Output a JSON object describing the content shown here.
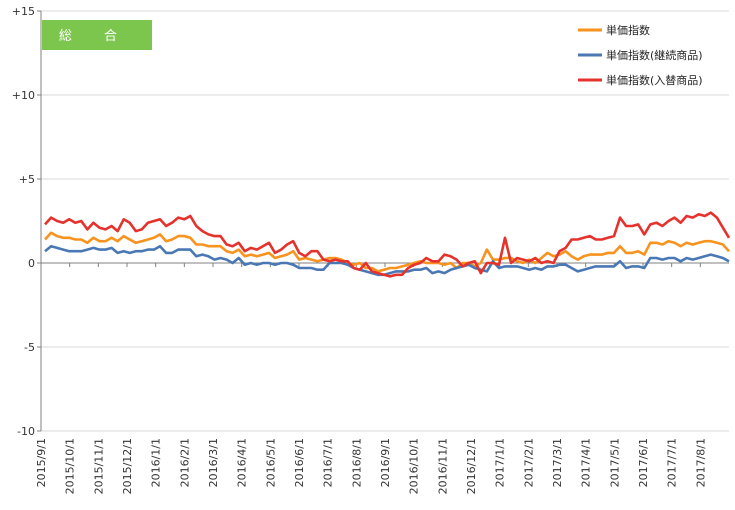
{
  "chart_data": {
    "type": "line",
    "title": "総 合",
    "badge_color": "#7cc64e",
    "ylim": [
      -10,
      15
    ],
    "yticks": [
      -10,
      -5,
      0,
      5,
      10,
      15
    ],
    "ytick_labels": [
      "-10",
      "-5",
      "0",
      "+5",
      "+10",
      "+15"
    ],
    "grid": true,
    "legend_position": "top-right",
    "xlabels": [
      "2015/9/1",
      "2015/10/1",
      "2015/11/1",
      "2015/12/1",
      "2016/1/1",
      "2016/2/1",
      "2016/3/1",
      "2016/4/1",
      "2016/5/1",
      "2016/6/1",
      "2016/7/1",
      "2016/8/1",
      "2016/9/1",
      "2016/10/1",
      "2016/11/1",
      "2016/12/1",
      "2017/1/1",
      "2017/2/1",
      "2017/3/1",
      "2017/4/1",
      "2017/5/1",
      "2017/6/1",
      "2017/7/1",
      "2017/8/1"
    ],
    "series": [
      {
        "name": "単価指数",
        "color": "#f7931e",
        "values": [
          1.4,
          1.8,
          1.6,
          1.5,
          1.5,
          1.4,
          1.4,
          1.2,
          1.5,
          1.3,
          1.3,
          1.5,
          1.3,
          1.6,
          1.4,
          1.2,
          1.3,
          1.4,
          1.5,
          1.7,
          1.3,
          1.4,
          1.6,
          1.6,
          1.5,
          1.1,
          1.1,
          1.0,
          1.0,
          1.0,
          0.7,
          0.6,
          0.8,
          0.4,
          0.5,
          0.4,
          0.5,
          0.6,
          0.3,
          0.4,
          0.5,
          0.7,
          0.2,
          0.3,
          0.2,
          0.1,
          0.2,
          0.3,
          0.3,
          0.2,
          0.0,
          -0.1,
          0.0,
          -0.3,
          -0.3,
          -0.5,
          -0.4,
          -0.3,
          -0.3,
          -0.2,
          -0.1,
          0.0,
          0.1,
          0.0,
          0.0,
          0.0,
          -0.1,
          0.0,
          -0.3,
          0.0,
          0.0,
          -0.2,
          0.0,
          0.8,
          0.2,
          0.2,
          0.3,
          0.3,
          0.1,
          0.0,
          0.2,
          0.0,
          0.3,
          0.6,
          0.4,
          0.5,
          0.7,
          0.4,
          0.2,
          0.4,
          0.5,
          0.5,
          0.5,
          0.6,
          0.6,
          1.0,
          0.6,
          0.6,
          0.7,
          0.5,
          1.2,
          1.2,
          1.1,
          1.3,
          1.2,
          1.0,
          1.2,
          1.1,
          1.2,
          1.3,
          1.3,
          1.2,
          1.1,
          0.7
        ]
      },
      {
        "name": "単価指数(継続商品)",
        "color": "#4a78b5",
        "values": [
          0.7,
          1.0,
          0.9,
          0.8,
          0.7,
          0.7,
          0.7,
          0.8,
          0.9,
          0.8,
          0.8,
          0.9,
          0.6,
          0.7,
          0.6,
          0.7,
          0.7,
          0.8,
          0.8,
          1.0,
          0.6,
          0.6,
          0.8,
          0.8,
          0.8,
          0.4,
          0.5,
          0.4,
          0.2,
          0.3,
          0.2,
          0.0,
          0.3,
          -0.1,
          0.0,
          -0.1,
          0.0,
          0.0,
          -0.1,
          0.0,
          0.0,
          -0.1,
          -0.3,
          -0.3,
          -0.3,
          -0.4,
          -0.4,
          0.0,
          0.0,
          0.0,
          -0.1,
          -0.3,
          -0.4,
          -0.5,
          -0.6,
          -0.7,
          -0.7,
          -0.6,
          -0.5,
          -0.5,
          -0.5,
          -0.4,
          -0.4,
          -0.3,
          -0.6,
          -0.5,
          -0.6,
          -0.4,
          -0.3,
          -0.2,
          -0.1,
          -0.3,
          -0.4,
          -0.5,
          0.1,
          -0.3,
          -0.2,
          -0.2,
          -0.2,
          -0.3,
          -0.4,
          -0.3,
          -0.4,
          -0.2,
          -0.2,
          -0.1,
          -0.1,
          -0.3,
          -0.5,
          -0.4,
          -0.3,
          -0.2,
          -0.2,
          -0.2,
          -0.2,
          0.1,
          -0.3,
          -0.2,
          -0.2,
          -0.3,
          0.3,
          0.3,
          0.2,
          0.3,
          0.3,
          0.1,
          0.3,
          0.2,
          0.3,
          0.4,
          0.5,
          0.4,
          0.3,
          0.1
        ]
      },
      {
        "name": "単価指数(入替商品)",
        "color": "#e5322d",
        "values": [
          2.3,
          2.7,
          2.5,
          2.4,
          2.6,
          2.4,
          2.5,
          2.0,
          2.4,
          2.1,
          2.0,
          2.2,
          1.9,
          2.6,
          2.4,
          1.9,
          2.0,
          2.4,
          2.5,
          2.6,
          2.2,
          2.4,
          2.7,
          2.6,
          2.8,
          2.2,
          1.9,
          1.7,
          1.6,
          1.6,
          1.1,
          1.0,
          1.2,
          0.7,
          0.9,
          0.8,
          1.0,
          1.2,
          0.6,
          0.8,
          1.1,
          1.3,
          0.6,
          0.4,
          0.7,
          0.7,
          0.2,
          0.1,
          0.2,
          0.1,
          0.1,
          -0.3,
          -0.4,
          0.0,
          -0.5,
          -0.6,
          -0.7,
          -0.8,
          -0.7,
          -0.7,
          -0.3,
          -0.1,
          0.0,
          0.3,
          0.1,
          0.1,
          0.5,
          0.4,
          0.2,
          -0.2,
          0.0,
          0.1,
          -0.6,
          0.0,
          0.0,
          -0.1,
          1.5,
          0.0,
          0.3,
          0.2,
          0.1,
          0.3,
          0.0,
          0.1,
          0.0,
          0.7,
          0.9,
          1.4,
          1.4,
          1.5,
          1.6,
          1.4,
          1.4,
          1.5,
          1.6,
          2.7,
          2.2,
          2.2,
          2.3,
          1.7,
          2.3,
          2.4,
          2.2,
          2.5,
          2.7,
          2.4,
          2.8,
          2.7,
          2.9,
          2.8,
          3.0,
          2.7,
          2.1,
          1.5
        ]
      }
    ]
  }
}
